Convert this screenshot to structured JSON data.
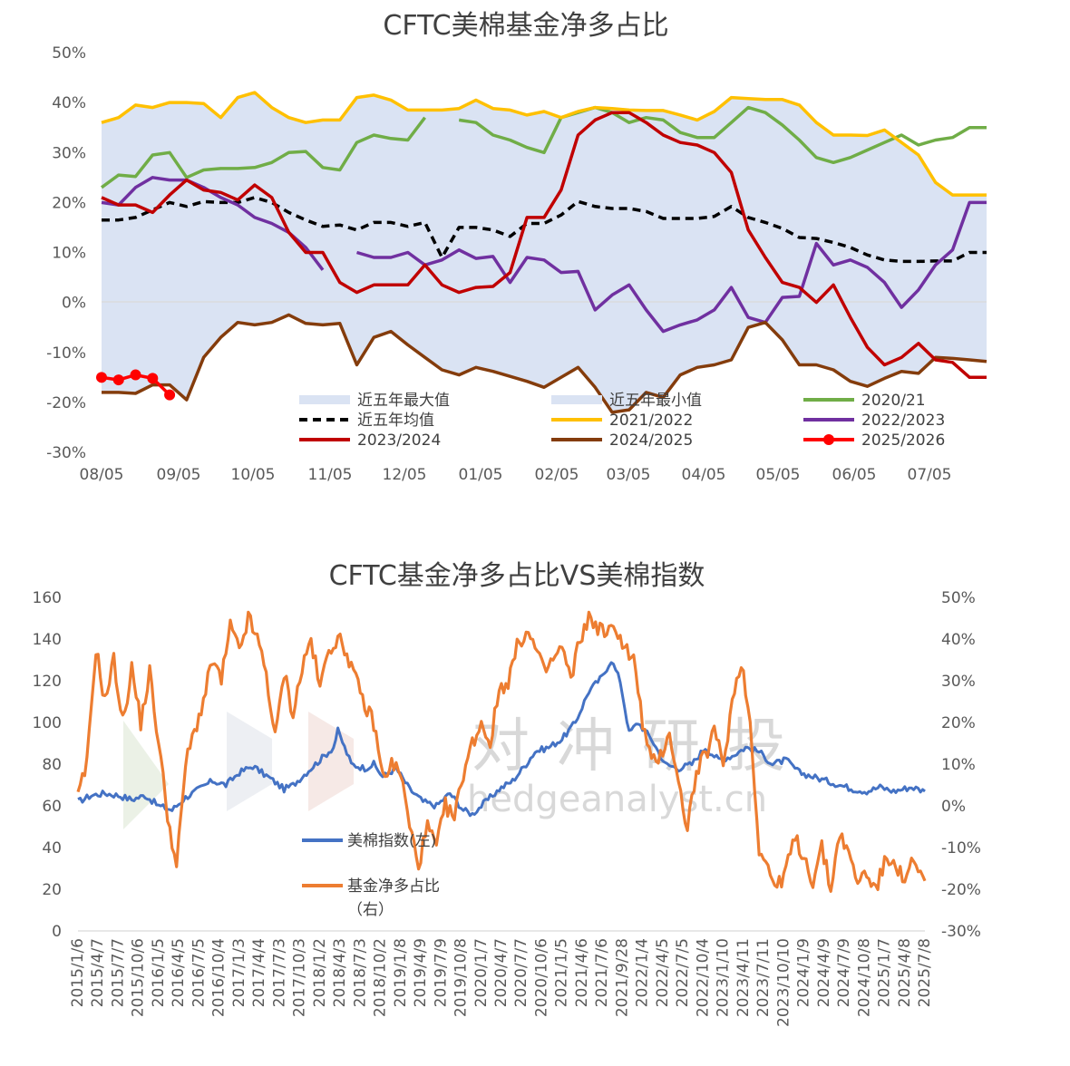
{
  "charts": [
    {
      "title": "CFTC美棉基金净多占比",
      "type": "line",
      "x_ticks": [
        "08/05",
        "09/05",
        "10/05",
        "11/05",
        "12/05",
        "01/05",
        "02/05",
        "03/05",
        "04/05",
        "05/05",
        "06/05",
        "07/05"
      ],
      "y_ticks": [
        "50%",
        "40%",
        "30%",
        "20%",
        "10%",
        "0%",
        "-10%",
        "-20%",
        "-30%"
      ],
      "ylim": [
        -30,
        50
      ],
      "n_points": 53,
      "colors": {
        "band": "#dae3f3",
        "s2020": "#70ad47",
        "avg": "#000000",
        "s2021": "#ffc000",
        "s2022": "#7030a0",
        "s2023": "#c00000",
        "s2024": "#843c0c",
        "s2025": "#ff0000"
      },
      "legend": [
        {
          "key": "max",
          "label": "近五年最大值"
        },
        {
          "key": "min",
          "label": "近五年最小值"
        },
        {
          "key": "s2020",
          "label": "2020/21"
        },
        {
          "key": "avg",
          "label": "近五年均值"
        },
        {
          "key": "s2021",
          "label": "2021/2022"
        },
        {
          "key": "s2022",
          "label": "2022/2023"
        },
        {
          "key": "s2023",
          "label": "2023/2024"
        },
        {
          "key": "s2024",
          "label": "2024/2025"
        },
        {
          "key": "s2025",
          "label": "2025/2026"
        }
      ],
      "chart_data": {
        "max": [
          36,
          37,
          39.5,
          39,
          40,
          40,
          39.8,
          37,
          41,
          42,
          39,
          37,
          36,
          36.5,
          36.5,
          41,
          41.5,
          40.5,
          38.5,
          38.5,
          38.5,
          38.8,
          40.5,
          38.8,
          38.5,
          37.5,
          38.2,
          37,
          38.2,
          39,
          38.8,
          38.5,
          38.4,
          38.4,
          37.5,
          36.5,
          38.2,
          41,
          40.8,
          40.6,
          40.6,
          39.5,
          36,
          33.5,
          33.5,
          33.4,
          34.5,
          32,
          29.5,
          24,
          21.5,
          21.5,
          21.5
        ],
        "min": [
          -18,
          -18,
          -18.2,
          -16.5,
          -16.5,
          -19.5,
          -11,
          -7,
          -4,
          -4.5,
          -4,
          -2.5,
          -4.2,
          -4.5,
          -4.2,
          -12.5,
          -7,
          -5.8,
          -8.5,
          -11,
          -13.5,
          -14.5,
          -13,
          -13.8,
          -14.8,
          -15.8,
          -17,
          -15,
          -13,
          -17,
          -22,
          -21.5,
          -18,
          -19,
          -14.5,
          -13,
          -12.5,
          -11.5,
          -5,
          -4,
          -7.5,
          -12.5,
          -12.5,
          -13.5,
          -15.8,
          -16.8,
          -15.2,
          -13.8,
          -14.2,
          -11,
          -11.2,
          -11.5,
          -11.8
        ],
        "avg": [
          16.5,
          16.5,
          17,
          18.5,
          20,
          19.2,
          20.2,
          20,
          20,
          21,
          20,
          18,
          16.5,
          15.2,
          15.5,
          14.5,
          16,
          16,
          15.2,
          16,
          9,
          15,
          15,
          14.5,
          13.2,
          15.8,
          15.8,
          17.5,
          20.2,
          19.2,
          18.8,
          18.8,
          18.2,
          16.8,
          16.8,
          16.8,
          17.2,
          19.2,
          17,
          16,
          14.8,
          13,
          12.8,
          12,
          11,
          9.5,
          8.5,
          8.2,
          8.2,
          8.3,
          8.3,
          10,
          10
        ],
        "s2020": [
          23,
          25.5,
          25.2,
          29.5,
          30,
          25,
          26.5,
          26.8,
          26.8,
          27,
          28,
          30,
          30.2,
          27,
          26.5,
          32,
          33.5,
          32.8,
          32.5,
          37,
          null,
          36.5,
          36,
          33.5,
          32.5,
          31,
          30,
          37,
          38,
          39,
          38,
          36,
          37,
          36.5,
          34,
          33,
          33,
          36,
          39,
          38,
          35.5,
          32.5,
          29,
          28,
          29,
          30.5,
          32,
          33.5,
          31.5,
          32.5,
          33,
          35,
          35
        ],
        "s2021": [
          36,
          37,
          39.5,
          39,
          40,
          40,
          39.8,
          37,
          41,
          42,
          39,
          37,
          36,
          36.5,
          36.5,
          41,
          41.5,
          40.5,
          38.5,
          38.5,
          38.5,
          38.8,
          40.5,
          38.8,
          38.5,
          37.5,
          38.2,
          37,
          38.2,
          39,
          38.8,
          38.5,
          38.4,
          38.4,
          37.5,
          36.5,
          38.2,
          41,
          40.8,
          40.6,
          40.6,
          39.5,
          36,
          33.5,
          33.5,
          33.4,
          34.5,
          32,
          29.5,
          24,
          21.5,
          21.5,
          21.5
        ],
        "s2022": [
          20,
          19.5,
          23,
          25,
          24.5,
          24.5,
          23,
          21,
          19.5,
          17,
          15.8,
          14,
          11,
          6.5,
          null,
          10,
          9,
          9,
          10,
          7.5,
          8.5,
          10.5,
          8.8,
          9.2,
          4,
          9,
          8.5,
          6,
          6.2,
          -1.5,
          1.5,
          3.5,
          -1.5,
          -5.8,
          -4.5,
          -3.5,
          -1.5,
          3,
          -3,
          -4,
          1,
          1.2,
          11.8,
          7.5,
          8.5,
          7,
          4,
          -1,
          2.5,
          7.5,
          10.5,
          20,
          20
        ],
        "s2023": [
          21,
          19.5,
          19.5,
          18,
          21.5,
          24.5,
          22.5,
          22,
          20.5,
          23.5,
          21,
          14,
          10,
          10,
          4,
          2,
          3.5,
          3.5,
          3.5,
          7.5,
          3.5,
          2,
          3,
          3.2,
          6,
          17,
          17,
          22.5,
          33.5,
          36.5,
          38,
          38,
          36,
          33.5,
          32,
          31.5,
          30,
          26,
          14.5,
          9,
          4,
          3,
          0,
          3.5,
          -3,
          -9,
          -12.5,
          -11,
          -8.2,
          -11.5,
          -12,
          -15,
          -15
        ],
        "s2024": [
          -18,
          -18,
          -18.2,
          -16.5,
          -16.5,
          -19.5,
          -11,
          -7,
          -4,
          -4.5,
          -4,
          -2.5,
          -4.2,
          -4.5,
          -4.2,
          -12.5,
          -7,
          -5.8,
          -8.5,
          -11,
          -13.5,
          -14.5,
          -13,
          -13.8,
          -14.8,
          -15.8,
          -17,
          -15,
          -13,
          -17,
          -22,
          -21.5,
          -18,
          -19,
          -14.5,
          -13,
          -12.5,
          -11.5,
          -5,
          -4,
          -7.5,
          -12.5,
          -12.5,
          -13.5,
          -15.8,
          -16.8,
          -15.2,
          -13.8,
          -14.2,
          -11,
          -11.2,
          -11.5,
          -11.8
        ],
        "s2025": [
          -15,
          -15.5,
          -14.5,
          -15.2,
          -18.5
        ]
      }
    },
    {
      "title": "CFTC基金净多占比VS美棉指数",
      "type": "line",
      "left_ticks": [
        "160",
        "140",
        "120",
        "100",
        "80",
        "60",
        "40",
        "20",
        "0"
      ],
      "right_ticks": [
        "50%",
        "40%",
        "30%",
        "20%",
        "10%",
        "0%",
        "-10%",
        "-20%",
        "-30%"
      ],
      "x_ticks": [
        "2015/1/6",
        "2015/4/7",
        "2015/7/7",
        "2015/10/6",
        "2016/1/5",
        "2016/4/5",
        "2016/7/5",
        "2016/10/4",
        "2017/1/3",
        "2017/4/4",
        "2017/7/3",
        "2017/10/3",
        "2018/1/2",
        "2018/4/3",
        "2018/7/3",
        "2018/10/2",
        "2019/1/8",
        "2019/4/9",
        "2019/7/9",
        "2019/10/8",
        "2020/1/7",
        "2020/4/7",
        "2020/7/7",
        "2020/10/6",
        "2021/1/5",
        "2021/4/6",
        "2021/7/6",
        "2021/9/28",
        "2022/1/4",
        "2022/4/5",
        "2022/7/5",
        "2022/10/4",
        "2023/1/10",
        "2023/4/11",
        "2023/7/11",
        "2023/10/10",
        "2024/1/9",
        "2024/4/9",
        "2024/7/9",
        "2024/10/8",
        "2025/1/7",
        "2025/4/8",
        "2025/7/8"
      ],
      "ylim_left": [
        0,
        160
      ],
      "ylim_right": [
        -30,
        50
      ],
      "colors": {
        "index": "#4472c4",
        "net": "#ed7d31"
      },
      "legend": [
        {
          "key": "index",
          "label": "美棉指数(左)"
        },
        {
          "key": "net",
          "label": "基金净多占比",
          "label2": "（右）"
        }
      ],
      "watermark": {
        "cn": "对冲研投",
        "en": "hedgeanalyst.cn"
      },
      "chart_data": {
        "x_start": "2015/1/6",
        "x_end": "2025/9/2",
        "index_anchors": [
          [
            0,
            62
          ],
          [
            3,
            65
          ],
          [
            6,
            66
          ],
          [
            9,
            65
          ],
          [
            12,
            63
          ],
          [
            15,
            65
          ],
          [
            18,
            60
          ],
          [
            21,
            58
          ],
          [
            24,
            64
          ],
          [
            27,
            68
          ],
          [
            30,
            72
          ],
          [
            33,
            70
          ],
          [
            36,
            76
          ],
          [
            39,
            79
          ],
          [
            41,
            76
          ],
          [
            43,
            73
          ],
          [
            46,
            68
          ],
          [
            48,
            70
          ],
          [
            51,
            76
          ],
          [
            54,
            82
          ],
          [
            57,
            88
          ],
          [
            58,
            96
          ],
          [
            61,
            80
          ],
          [
            64,
            78
          ],
          [
            66,
            80
          ],
          [
            68,
            74
          ],
          [
            71,
            78
          ],
          [
            74,
            68
          ],
          [
            77,
            62
          ],
          [
            80,
            60
          ],
          [
            83,
            66
          ],
          [
            86,
            58
          ],
          [
            88,
            56
          ],
          [
            91,
            62
          ],
          [
            94,
            68
          ],
          [
            97,
            72
          ],
          [
            100,
            80
          ],
          [
            102,
            86
          ],
          [
            105,
            88
          ],
          [
            108,
            92
          ],
          [
            111,
            100
          ],
          [
            114,
            115
          ],
          [
            117,
            122
          ],
          [
            119,
            130
          ],
          [
            121,
            120
          ],
          [
            123,
            95
          ],
          [
            125,
            100
          ],
          [
            128,
            92
          ],
          [
            131,
            80
          ],
          [
            134,
            78
          ],
          [
            137,
            80
          ],
          [
            140,
            88
          ],
          [
            143,
            82
          ],
          [
            146,
            84
          ],
          [
            149,
            88
          ],
          [
            152,
            86
          ],
          [
            155,
            80
          ],
          [
            158,
            82
          ],
          [
            161,
            76
          ],
          [
            164,
            74
          ],
          [
            167,
            72
          ],
          [
            170,
            70
          ],
          [
            173,
            68
          ],
          [
            176,
            67
          ],
          [
            179,
            69
          ],
          [
            182,
            67
          ],
          [
            186,
            69
          ],
          [
            189,
            67
          ]
        ],
        "net_anchors": [
          [
            0,
            2
          ],
          [
            2,
            10
          ],
          [
            4,
            38
          ],
          [
            6,
            25
          ],
          [
            8,
            35
          ],
          [
            10,
            20
          ],
          [
            12,
            33
          ],
          [
            14,
            20
          ],
          [
            16,
            32
          ],
          [
            18,
            15
          ],
          [
            20,
            -2
          ],
          [
            22,
            -15
          ],
          [
            24,
            10
          ],
          [
            26,
            18
          ],
          [
            28,
            25
          ],
          [
            30,
            35
          ],
          [
            32,
            30
          ],
          [
            34,
            43
          ],
          [
            36,
            37
          ],
          [
            38,
            45
          ],
          [
            40,
            40
          ],
          [
            42,
            32
          ],
          [
            44,
            16
          ],
          [
            46,
            32
          ],
          [
            48,
            22
          ],
          [
            50,
            33
          ],
          [
            52,
            40
          ],
          [
            54,
            28
          ],
          [
            56,
            38
          ],
          [
            58,
            40
          ],
          [
            60,
            37
          ],
          [
            62,
            30
          ],
          [
            64,
            24
          ],
          [
            66,
            20
          ],
          [
            68,
            7
          ],
          [
            70,
            10
          ],
          [
            72,
            8
          ],
          [
            74,
            -5
          ],
          [
            76,
            -14
          ],
          [
            78,
            -5
          ],
          [
            80,
            -10
          ],
          [
            82,
            0
          ],
          [
            84,
            -3
          ],
          [
            86,
            8
          ],
          [
            88,
            15
          ],
          [
            90,
            20
          ],
          [
            92,
            15
          ],
          [
            94,
            28
          ],
          [
            96,
            30
          ],
          [
            98,
            38
          ],
          [
            100,
            42
          ],
          [
            102,
            38
          ],
          [
            104,
            32
          ],
          [
            106,
            35
          ],
          [
            108,
            38
          ],
          [
            110,
            30
          ],
          [
            112,
            40
          ],
          [
            114,
            45
          ],
          [
            116,
            43
          ],
          [
            118,
            41
          ],
          [
            120,
            43
          ],
          [
            122,
            38
          ],
          [
            124,
            35
          ],
          [
            126,
            20
          ],
          [
            128,
            10
          ],
          [
            130,
            12
          ],
          [
            132,
            18
          ],
          [
            134,
            5
          ],
          [
            136,
            -5
          ],
          [
            138,
            8
          ],
          [
            140,
            12
          ],
          [
            142,
            18
          ],
          [
            144,
            10
          ],
          [
            146,
            25
          ],
          [
            148,
            35
          ],
          [
            150,
            20
          ],
          [
            152,
            -10
          ],
          [
            154,
            -15
          ],
          [
            156,
            -20
          ],
          [
            158,
            -15
          ],
          [
            160,
            -8
          ],
          [
            162,
            -12
          ],
          [
            164,
            -18
          ],
          [
            166,
            -10
          ],
          [
            168,
            -20
          ],
          [
            170,
            -6
          ],
          [
            172,
            -12
          ],
          [
            174,
            -18
          ],
          [
            176,
            -16
          ],
          [
            178,
            -20
          ],
          [
            180,
            -14
          ],
          [
            182,
            -12
          ],
          [
            184,
            -18
          ],
          [
            186,
            -14
          ],
          [
            189,
            -18
          ]
        ]
      }
    }
  ]
}
